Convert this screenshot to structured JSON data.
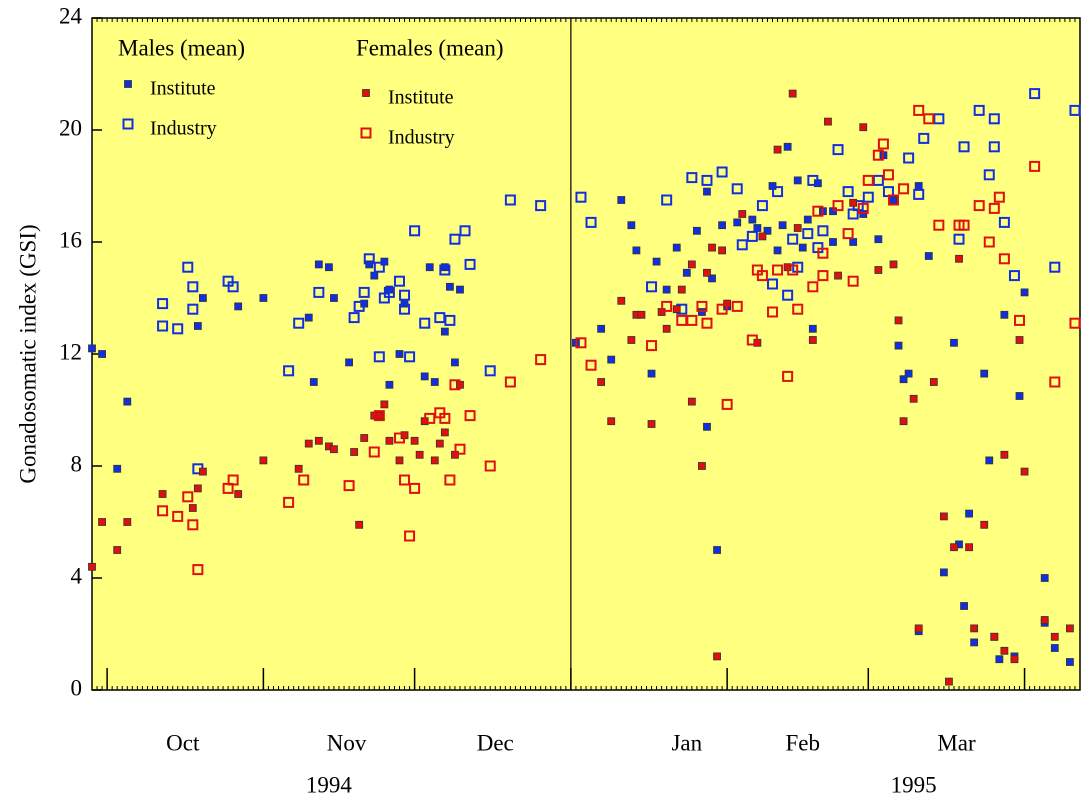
{
  "chart_data": {
    "type": "scatter",
    "ylabel": "Gonadosomatic index (GSI)",
    "ylim": [
      0,
      24
    ],
    "yticks": [
      0,
      4,
      8,
      12,
      16,
      20,
      24
    ],
    "xlim": [
      -3,
      193
    ],
    "xticks": [
      {
        "value": 15,
        "label": "Oct"
      },
      {
        "value": 47.5,
        "label": "Nov"
      },
      {
        "value": 77,
        "label": "Dec"
      },
      {
        "value": 115,
        "label": "Jan"
      },
      {
        "value": 138,
        "label": "Feb"
      },
      {
        "value": 168.5,
        "label": "Mar"
      }
    ],
    "xticks_major": [
      0,
      31,
      61,
      92,
      123,
      151,
      182
    ],
    "year_labels": [
      {
        "value": 44,
        "label": "1994"
      },
      {
        "value": 160,
        "label": "1995"
      }
    ],
    "year_divider": 92,
    "background": "#ffff80",
    "grid": false,
    "legend_groups": [
      "Males (mean)",
      "Females (mean)"
    ],
    "series": [
      {
        "name": "Institute",
        "legend_group": 0,
        "marker": "filled",
        "color": "#1030e0",
        "x": [
          -3,
          -1,
          2,
          4,
          18,
          19,
          26,
          31,
          40,
          41,
          42,
          44,
          45,
          48,
          51,
          52,
          53,
          55,
          56,
          56,
          58,
          59,
          63,
          64,
          65,
          67,
          67,
          68,
          69,
          70,
          93,
          98,
          100,
          102,
          104,
          105,
          108,
          109,
          111,
          113,
          115,
          117,
          118,
          119,
          119,
          120,
          121,
          122,
          123,
          125,
          128,
          129,
          131,
          132,
          133,
          134,
          135,
          137,
          138,
          139,
          140,
          141,
          142,
          144,
          144,
          148,
          150,
          153,
          154,
          156,
          157,
          158,
          159,
          161,
          161,
          163,
          166,
          168,
          169,
          170,
          171,
          172,
          174,
          175,
          176,
          177,
          178,
          180,
          181,
          182,
          186,
          186,
          188,
          191
        ],
        "values": [
          12.2,
          12.0,
          7.9,
          10.3,
          13.0,
          14.0,
          13.7,
          14.0,
          13.3,
          11.0,
          15.2,
          15.1,
          14.0,
          11.7,
          13.8,
          15.2,
          14.8,
          15.3,
          14.3,
          10.9,
          12.0,
          13.8,
          11.2,
          15.1,
          11.0,
          15.1,
          12.8,
          14.4,
          11.7,
          14.3,
          12.4,
          12.9,
          11.8,
          17.5,
          16.6,
          15.7,
          11.3,
          15.3,
          14.3,
          15.8,
          14.9,
          16.4,
          13.5,
          9.4,
          17.8,
          14.7,
          5.0,
          16.6,
          13.7,
          16.7,
          16.8,
          16.5,
          16.4,
          18.0,
          15.7,
          16.6,
          19.4,
          18.2,
          15.8,
          16.8,
          12.9,
          18.1,
          17.1,
          17.1,
          16.0,
          16.0,
          17.0,
          16.1,
          19.1,
          17.5,
          12.3,
          11.1,
          11.3,
          18.0,
          2.1,
          15.5,
          4.2,
          12.4,
          5.2,
          3.0,
          6.3,
          1.7,
          11.3,
          8.2,
          1.9,
          1.1,
          13.4,
          1.2,
          10.5,
          14.2,
          4.0,
          2.4,
          1.5,
          1.0
        ]
      },
      {
        "name": "Industry",
        "legend_group": 0,
        "marker": "open",
        "color": "#1030e0",
        "x": [
          11,
          11,
          14,
          16,
          17,
          17,
          18,
          24,
          25,
          36,
          38,
          42,
          49,
          50,
          51,
          52,
          54,
          54,
          55,
          56,
          58,
          59,
          59,
          60,
          61,
          63,
          66,
          67,
          68,
          69,
          71,
          72,
          76,
          80,
          86,
          94,
          96,
          111,
          108,
          114,
          116,
          119,
          122,
          125,
          126,
          128,
          130,
          132,
          133,
          135,
          136,
          137,
          139,
          140,
          141,
          142,
          145,
          147,
          148,
          149,
          151,
          153,
          155,
          159,
          161,
          162,
          165,
          170,
          169,
          173,
          176,
          176,
          175,
          178,
          180,
          184,
          188,
          192
        ],
        "values": [
          13.0,
          13.8,
          12.9,
          15.1,
          14.4,
          13.6,
          7.9,
          14.6,
          14.4,
          11.4,
          13.1,
          14.2,
          13.3,
          13.7,
          14.2,
          15.4,
          15.1,
          11.9,
          14.0,
          14.2,
          14.6,
          14.1,
          13.6,
          11.9,
          16.4,
          13.1,
          13.3,
          15.0,
          13.2,
          16.1,
          16.4,
          15.2,
          11.4,
          17.5,
          17.3,
          17.6,
          16.7,
          17.5,
          14.4,
          13.6,
          18.3,
          18.2,
          18.5,
          17.9,
          15.9,
          16.2,
          17.3,
          14.5,
          17.8,
          14.1,
          16.1,
          15.1,
          16.3,
          18.2,
          15.8,
          16.4,
          19.3,
          17.8,
          17.0,
          17.3,
          17.6,
          18.2,
          17.8,
          19.0,
          17.7,
          19.7,
          20.4,
          19.4,
          16.1,
          20.7,
          20.4,
          19.4,
          18.4,
          16.7,
          14.8,
          21.3,
          15.1,
          20.7
        ]
      },
      {
        "name": "Institute",
        "legend_group": 1,
        "marker": "filled",
        "color": "#e01010",
        "x": [
          -3,
          -1,
          2,
          4,
          11,
          17,
          18,
          19,
          26,
          31,
          38,
          40,
          42,
          44,
          45,
          49,
          50,
          51,
          53,
          54,
          55,
          56,
          58,
          59,
          61,
          62,
          63,
          65,
          66,
          67,
          69,
          70,
          98,
          100,
          102,
          104,
          105,
          106,
          108,
          110,
          111,
          113,
          114,
          116,
          116,
          118,
          119,
          120,
          121,
          122,
          123,
          126,
          129,
          130,
          133,
          135,
          136,
          137,
          140,
          143,
          145,
          148,
          150,
          153,
          156,
          157,
          158,
          160,
          161,
          164,
          166,
          167,
          168,
          169,
          171,
          172,
          174,
          176,
          178,
          178,
          180,
          181,
          182,
          186,
          188,
          191
        ],
        "values": [
          4.4,
          6.0,
          5.0,
          6.0,
          7.0,
          6.5,
          7.2,
          7.8,
          7.0,
          8.2,
          7.9,
          8.8,
          8.9,
          8.7,
          8.6,
          8.5,
          5.9,
          9.0,
          9.8,
          9.8,
          10.2,
          8.9,
          8.2,
          9.1,
          8.9,
          8.4,
          9.6,
          8.2,
          8.8,
          9.2,
          8.4,
          10.9,
          11.0,
          9.6,
          13.9,
          12.5,
          13.4,
          13.4,
          9.5,
          13.5,
          12.9,
          13.6,
          14.3,
          15.2,
          10.3,
          8.0,
          14.9,
          15.8,
          1.2,
          15.7,
          13.8,
          17.0,
          12.4,
          16.2,
          19.3,
          15.1,
          21.3,
          16.5,
          12.5,
          20.3,
          14.8,
          17.4,
          20.1,
          15.0,
          15.2,
          13.2,
          9.6,
          10.4,
          2.2,
          11.0,
          6.2,
          0.3,
          5.1,
          15.4,
          5.1,
          2.2,
          5.9,
          1.9,
          1.4,
          8.4,
          1.1,
          12.5,
          7.8,
          2.5,
          1.9,
          2.2
        ]
      },
      {
        "name": "Industry",
        "legend_group": 1,
        "marker": "open",
        "color": "#e01010",
        "x": [
          11,
          14,
          16,
          17,
          18,
          24,
          25,
          36,
          39,
          48,
          53,
          54,
          58,
          59,
          60,
          61,
          64,
          66,
          67,
          68,
          69,
          70,
          72,
          76,
          80,
          86,
          94,
          96,
          108,
          111,
          114,
          116,
          118,
          119,
          122,
          123,
          125,
          128,
          129,
          130,
          132,
          133,
          135,
          136,
          137,
          140,
          141,
          142,
          142,
          145,
          147,
          148,
          150,
          151,
          153,
          154,
          155,
          156,
          158,
          161,
          163,
          165,
          169,
          170,
          173,
          176,
          177,
          175,
          178,
          181,
          184,
          188,
          192
        ],
        "values": [
          6.4,
          6.2,
          6.9,
          5.9,
          4.3,
          7.2,
          7.5,
          6.7,
          7.5,
          7.3,
          8.5,
          9.8,
          9.0,
          7.5,
          5.5,
          7.2,
          9.7,
          9.9,
          9.7,
          7.5,
          10.9,
          8.6,
          9.8,
          8.0,
          11.0,
          11.8,
          12.4,
          11.6,
          12.3,
          13.7,
          13.2,
          13.2,
          13.7,
          13.1,
          13.6,
          10.2,
          13.7,
          12.5,
          15.0,
          14.8,
          13.5,
          15.0,
          11.2,
          15.0,
          13.6,
          14.4,
          17.1,
          15.6,
          14.8,
          17.3,
          16.3,
          14.6,
          17.2,
          18.2,
          19.1,
          19.5,
          18.4,
          17.5,
          17.9,
          20.7,
          20.4,
          16.6,
          16.6,
          16.6,
          17.3,
          17.2,
          17.6,
          16.0,
          15.4,
          13.2,
          18.7,
          11.0,
          13.1
        ]
      }
    ]
  }
}
